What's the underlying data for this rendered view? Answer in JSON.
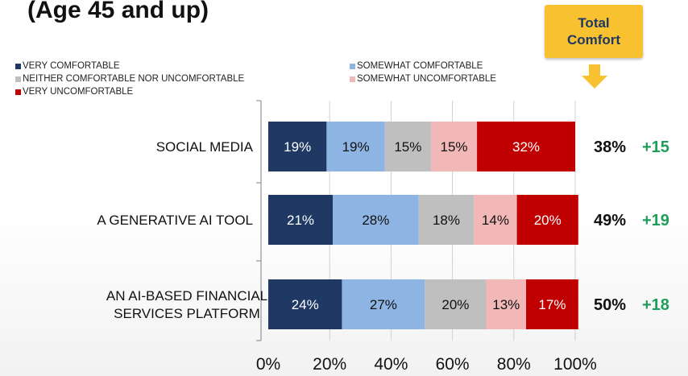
{
  "title": "(Age 45 and up)",
  "callout": {
    "text": "Total\nComfort",
    "color": "#f7c12f"
  },
  "legend": [
    {
      "label": "VERY COMFORTABLE",
      "color": "#1f3864"
    },
    {
      "label": "SOMEWHAT COMFORTABLE",
      "color": "#8eb4e3"
    },
    {
      "label": "NEITHER COMFORTABLE NOR UNCOMFORTABLE",
      "color": "#bfbfbf"
    },
    {
      "label": "SOMEWHAT UNCOMFORTABLE",
      "color": "#f2b8b8"
    },
    {
      "label": "VERY UNCOMFORTABLE",
      "color": "#c00000"
    }
  ],
  "chart_data": {
    "type": "bar",
    "orientation": "horizontal",
    "stacked": true,
    "categories": [
      [
        "SOCIAL MEDIA"
      ],
      [
        "A GENERATIVE AI TOOL"
      ],
      [
        "AN AI-BASED FINANCIAL",
        "SERVICES PLATFORM"
      ]
    ],
    "series": [
      {
        "name": "VERY COMFORTABLE",
        "color": "#1f3864",
        "label_color": "#ffffff",
        "values": [
          19,
          21,
          24
        ]
      },
      {
        "name": "SOMEWHAT COMFORTABLE",
        "color": "#8eb4e3",
        "label_color": "#111111",
        "values": [
          19,
          28,
          27
        ]
      },
      {
        "name": "NEITHER COMFORTABLE NOR UNCOMFORTABLE",
        "color": "#bfbfbf",
        "label_color": "#111111",
        "values": [
          15,
          18,
          20
        ]
      },
      {
        "name": "SOMEWHAT UNCOMFORTABLE",
        "color": "#f2b8b8",
        "label_color": "#111111",
        "values": [
          15,
          14,
          13
        ]
      },
      {
        "name": "VERY UNCOMFORTABLE",
        "color": "#c00000",
        "label_color": "#ffffff",
        "values": [
          32,
          20,
          17
        ]
      }
    ],
    "value_suffix": "%",
    "xlim": [
      0,
      100
    ],
    "xticks": [
      "0%",
      "20%",
      "40%",
      "60%",
      "80%",
      "100%"
    ],
    "totals": [
      {
        "pct": "38%",
        "delta": "+15"
      },
      {
        "pct": "49%",
        "delta": "+19"
      },
      {
        "pct": "50%",
        "delta": "+18"
      }
    ],
    "grid": true,
    "legend_position": "top"
  }
}
